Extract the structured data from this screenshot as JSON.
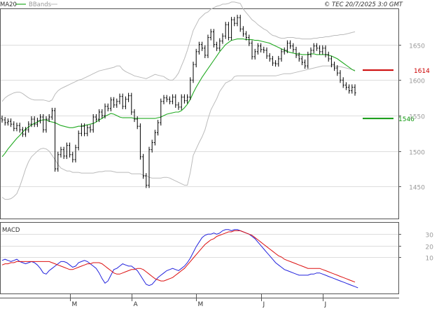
{
  "legend": {
    "ma20": "MA20",
    "bbands": "BBands",
    "copyright": "© TEC 20/7/2025 3:0 GMT"
  },
  "colors": {
    "ma20": "#22aa22",
    "bbands": "#bbbbbb",
    "bars": "#000000",
    "macd": "#2222dd",
    "signal": "#dd1111",
    "resistance": "#cc0000",
    "support": "#119911",
    "grid": "#dddddd"
  },
  "chart_data": [
    {
      "type": "ohlc",
      "name": "price",
      "x_labels": [
        "M",
        "A",
        "M",
        "J",
        "J"
      ],
      "x_label_dates": [
        "2025-03-01",
        "2025-04-01",
        "2025-05-01",
        "2025-06-01",
        "2025-07-01"
      ],
      "y_ticks": [
        1450,
        1500,
        1550,
        1600,
        1650
      ],
      "ylim": [
        1405,
        1700
      ],
      "grid": true,
      "levels": [
        {
          "name": "resistance",
          "value": 1614,
          "label": "1614"
        },
        {
          "name": "support",
          "value": 1546,
          "label": "1546"
        }
      ],
      "close": [
        1544,
        1540,
        1542,
        1538,
        1532,
        1536,
        1530,
        1524,
        1530,
        1538,
        1545,
        1538,
        1543,
        1548,
        1530,
        1545,
        1548,
        1557,
        1475,
        1495,
        1502,
        1493,
        1508,
        1495,
        1488,
        1505,
        1525,
        1535,
        1525,
        1533,
        1530,
        1548,
        1545,
        1555,
        1550,
        1563,
        1560,
        1572,
        1565,
        1570,
        1577,
        1563,
        1573,
        1578,
        1555,
        1545,
        1535,
        1492,
        1465,
        1452,
        1502,
        1512,
        1526,
        1540,
        1570,
        1575,
        1573,
        1570,
        1576,
        1565,
        1562,
        1576,
        1571,
        1576,
        1600,
        1622,
        1640,
        1650,
        1645,
        1635,
        1660,
        1668,
        1650,
        1645,
        1655,
        1662,
        1678,
        1660,
        1685,
        1680,
        1688,
        1672,
        1665,
        1660,
        1652,
        1633,
        1640,
        1648,
        1643,
        1642,
        1634,
        1630,
        1624,
        1623,
        1630,
        1640,
        1642,
        1652,
        1648,
        1643,
        1635,
        1630,
        1625,
        1620,
        1636,
        1642,
        1648,
        1645,
        1640,
        1645,
        1636,
        1630,
        1622,
        1617,
        1610,
        1600,
        1593,
        1590,
        1585,
        1590,
        1582
      ],
      "ma20": [
        1492,
        1497,
        1503,
        1508,
        1513,
        1518,
        1522,
        1527,
        1531,
        1534,
        1537,
        1539,
        1541,
        1543,
        1544,
        1544,
        1542,
        1541,
        1540,
        1538,
        1536,
        1535,
        1534,
        1533,
        1533,
        1534,
        1535,
        1535,
        1536,
        1537,
        1538,
        1539,
        1541,
        1544,
        1546,
        1549,
        1551,
        1553,
        1552,
        1550,
        1548,
        1547,
        1547,
        1547,
        1547,
        1546,
        1546,
        1546,
        1546,
        1546,
        1546,
        1546,
        1546,
        1547,
        1548,
        1550,
        1552,
        1553,
        1554,
        1555,
        1555,
        1557,
        1561,
        1566,
        1573,
        1582,
        1590,
        1597,
        1604,
        1610,
        1616,
        1622,
        1628,
        1634,
        1640,
        1645,
        1650,
        1653,
        1656,
        1657,
        1658,
        1658,
        1658,
        1657,
        1657,
        1657,
        1656,
        1656,
        1655,
        1654,
        1653,
        1652,
        1650,
        1648,
        1646,
        1644,
        1642,
        1640,
        1639,
        1638,
        1637,
        1637,
        1636,
        1636,
        1636,
        1637,
        1637,
        1636,
        1636,
        1636,
        1636,
        1635,
        1634,
        1632,
        1630,
        1627,
        1624,
        1621,
        1618,
        1615,
        1613
      ],
      "bb_upper": [
        1570,
        1575,
        1578,
        1580,
        1582,
        1583,
        1583,
        1581,
        1578,
        1575,
        1573,
        1572,
        1572,
        1572,
        1572,
        1571,
        1570,
        1572,
        1580,
        1585,
        1588,
        1590,
        1592,
        1594,
        1596,
        1598,
        1600,
        1601,
        1603,
        1605,
        1607,
        1609,
        1611,
        1613,
        1614,
        1615,
        1616,
        1617,
        1618,
        1620,
        1620,
        1615,
        1612,
        1610,
        1608,
        1606,
        1605,
        1604,
        1603,
        1602,
        1604,
        1606,
        1608,
        1607,
        1606,
        1605,
        1602,
        1600,
        1600,
        1604,
        1610,
        1620,
        1630,
        1642,
        1656,
        1670,
        1678,
        1686,
        1690,
        1694,
        1696,
        1700,
        1702,
        1704,
        1705,
        1707,
        1707,
        1708,
        1710,
        1710,
        1709,
        1708,
        1700,
        1695,
        1690,
        1685,
        1682,
        1678,
        1675,
        1672,
        1670,
        1666,
        1663,
        1662,
        1660,
        1659,
        1659,
        1660,
        1660,
        1660,
        1659,
        1659,
        1658,
        1658,
        1658,
        1658,
        1659,
        1659,
        1660,
        1660,
        1661,
        1661,
        1662,
        1663,
        1663,
        1664,
        1664,
        1665,
        1666,
        1667,
        1668
      ],
      "bb_lower": [
        1435,
        1432,
        1432,
        1433,
        1436,
        1440,
        1450,
        1462,
        1475,
        1485,
        1492,
        1496,
        1500,
        1503,
        1504,
        1503,
        1500,
        1494,
        1488,
        1481,
        1476,
        1474,
        1472,
        1472,
        1470,
        1470,
        1470,
        1469,
        1469,
        1469,
        1469,
        1469,
        1470,
        1471,
        1471,
        1472,
        1472,
        1472,
        1471,
        1470,
        1470,
        1470,
        1470,
        1470,
        1468,
        1468,
        1468,
        1468,
        1466,
        1466,
        1463,
        1462,
        1462,
        1462,
        1462,
        1463,
        1463,
        1462,
        1460,
        1458,
        1456,
        1454,
        1452,
        1452,
        1470,
        1494,
        1503,
        1512,
        1520,
        1530,
        1545,
        1558,
        1566,
        1574,
        1584,
        1590,
        1596,
        1598,
        1600,
        1605,
        1606,
        1606,
        1606,
        1606,
        1606,
        1606,
        1606,
        1606,
        1606,
        1606,
        1606,
        1606,
        1606,
        1606,
        1607,
        1608,
        1609,
        1609,
        1609,
        1610,
        1611,
        1612,
        1613,
        1614,
        1615,
        1616,
        1617,
        1618,
        1619,
        1620,
        1620,
        1620,
        1620,
        1620,
        1619,
        1619,
        1618,
        1617,
        1616,
        1615,
        1614
      ]
    },
    {
      "type": "line",
      "name": "MACD",
      "title": "MACD",
      "x_labels": [
        "M",
        "A",
        "M",
        "J",
        "J"
      ],
      "y_ticks": [
        10,
        20,
        30
      ],
      "y_tick_labels": [
        "10",
        "20",
        "30"
      ],
      "ylim": [
        -22,
        40
      ],
      "series": [
        {
          "name": "macd",
          "values": [
            7,
            8,
            7,
            6,
            7,
            8,
            6,
            5,
            4,
            5,
            6,
            5,
            3,
            0,
            -4,
            -5,
            -2,
            0,
            2,
            4,
            6,
            6,
            5,
            3,
            1,
            2,
            5,
            6,
            7,
            6,
            4,
            2,
            0,
            -4,
            -9,
            -13,
            -11,
            -6,
            -1,
            0,
            2,
            4,
            3,
            2,
            2,
            0,
            -2,
            -6,
            -10,
            -14,
            -15,
            -14,
            -11,
            -8,
            -6,
            -4,
            -2,
            -1,
            0,
            -1,
            -2,
            0,
            2,
            5,
            9,
            14,
            19,
            23,
            27,
            29,
            30,
            30,
            31,
            30,
            31,
            33,
            34,
            34,
            33,
            34,
            34,
            33,
            32,
            31,
            30,
            28,
            26,
            23,
            20,
            17,
            14,
            11,
            8,
            5,
            3,
            1,
            -1,
            -2,
            -3,
            -4,
            -5,
            -6,
            -6,
            -6,
            -6,
            -5,
            -5,
            -4,
            -4,
            -5,
            -6,
            -7,
            -8,
            -9,
            -10,
            -11,
            -12,
            -13,
            -14,
            -15,
            -16,
            -17
          ]
        },
        {
          "name": "signal",
          "values": [
            3,
            4,
            4,
            5,
            5,
            6,
            6,
            6,
            6,
            6,
            6,
            6,
            6,
            6,
            6,
            6,
            6,
            5,
            4,
            3,
            2,
            1,
            0,
            -1,
            -1,
            0,
            1,
            2,
            3,
            4,
            4,
            5,
            5,
            5,
            4,
            2,
            0,
            -2,
            -4,
            -5,
            -5,
            -4,
            -3,
            -2,
            -1,
            -1,
            0,
            0,
            -1,
            -3,
            -5,
            -7,
            -9,
            -10,
            -11,
            -11,
            -10,
            -9,
            -8,
            -6,
            -4,
            -2,
            0,
            3,
            6,
            9,
            12,
            15,
            18,
            21,
            23,
            25,
            26,
            28,
            29,
            30,
            31,
            32,
            32,
            33,
            33,
            33,
            32,
            31,
            30,
            29,
            27,
            25,
            23,
            21,
            19,
            17,
            15,
            13,
            11,
            10,
            8,
            7,
            6,
            5,
            4,
            3,
            2,
            1,
            0,
            0,
            0,
            0,
            0,
            -1,
            -2,
            -3,
            -4,
            -5,
            -6,
            -7,
            -8,
            -9,
            -10,
            -11,
            -12
          ]
        }
      ]
    }
  ],
  "axis_labels": {
    "price_ticks": [
      "1450",
      "1500",
      "1550",
      "1600",
      "1650"
    ],
    "macd_ticks": [
      "10",
      "20",
      "30"
    ],
    "months": [
      "M",
      "A",
      "M",
      "J",
      "J"
    ]
  }
}
